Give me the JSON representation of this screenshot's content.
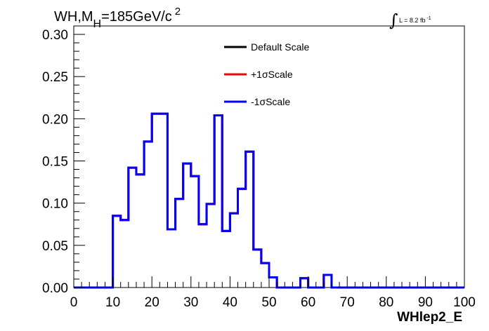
{
  "chart_data": {
    "type": "histogram",
    "title_parts": {
      "main": "WH,M",
      "sub": "H",
      "mid": "=185GeV/c",
      "sup": "2"
    },
    "lumi_parts": {
      "main": "L = 8.2 fb",
      "sup": "-1"
    },
    "xlabel": "WHlep2_E",
    "ylabel": "",
    "xlim": [
      0,
      100
    ],
    "ylim": [
      0,
      0.31
    ],
    "x_ticks": [
      0,
      10,
      20,
      30,
      40,
      50,
      60,
      70,
      80,
      90,
      100
    ],
    "x_tick_labels": [
      "0",
      "10",
      "20",
      "30",
      "40",
      "50",
      "60",
      "70",
      "80",
      "90",
      "100"
    ],
    "y_ticks": [
      0,
      0.05,
      0.1,
      0.15,
      0.2,
      0.25,
      0.3
    ],
    "y_tick_labels": [
      "0.00",
      "0.05",
      "0.10",
      "0.15",
      "0.20",
      "0.25",
      "0.30"
    ],
    "grid": false,
    "legend_position": "top-center",
    "bin_edges": [
      0,
      10,
      12,
      14,
      16,
      18,
      20,
      22,
      24,
      26,
      28,
      30,
      32,
      34,
      36,
      38,
      40,
      42,
      44,
      46,
      48,
      50,
      52,
      58,
      60,
      64,
      66,
      100
    ],
    "series": [
      {
        "name": "Default Scale",
        "color": "#000000",
        "values": [
          0,
          0.085,
          0.08,
          0.142,
          0.134,
          0.173,
          0.206,
          0.206,
          0.069,
          0.105,
          0.147,
          0.132,
          0.075,
          0.099,
          0.204,
          0.067,
          0.088,
          0.117,
          0.161,
          0.045,
          0.029,
          0.012,
          0,
          0.011,
          0,
          0.015,
          0
        ]
      },
      {
        "name": "+1σScale",
        "color": "#ff0000",
        "values": [
          0,
          0.085,
          0.08,
          0.142,
          0.134,
          0.173,
          0.206,
          0.206,
          0.069,
          0.105,
          0.147,
          0.132,
          0.075,
          0.099,
          0.204,
          0.067,
          0.088,
          0.117,
          0.161,
          0.045,
          0.029,
          0.012,
          0,
          0.011,
          0,
          0.015,
          0
        ]
      },
      {
        "name": "-1σScale",
        "color": "#0000ff",
        "values": [
          0,
          0.085,
          0.08,
          0.142,
          0.134,
          0.173,
          0.206,
          0.206,
          0.069,
          0.105,
          0.147,
          0.132,
          0.075,
          0.099,
          0.204,
          0.067,
          0.088,
          0.117,
          0.161,
          0.045,
          0.029,
          0.012,
          0,
          0.011,
          0,
          0.015,
          0
        ]
      }
    ]
  }
}
